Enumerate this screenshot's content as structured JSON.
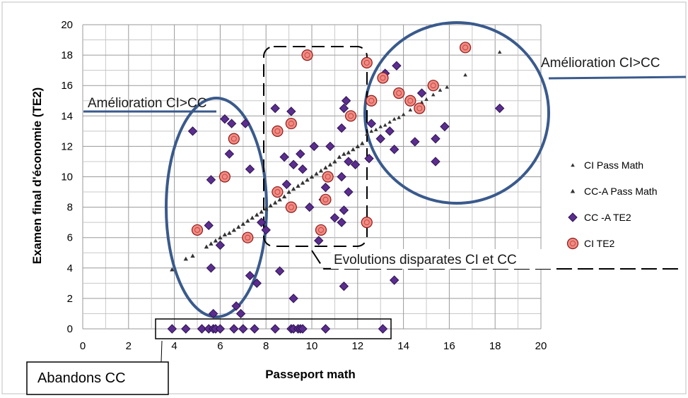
{
  "chart_data": {
    "type": "scatter",
    "xlabel": "Passeport math",
    "ylabel": "Examen final d'économie (TE2)",
    "xlim": [
      0,
      20
    ],
    "ylim": [
      0,
      20
    ],
    "x_ticks": [
      0,
      2,
      4,
      6,
      8,
      10,
      12,
      14,
      16,
      18,
      20
    ],
    "y_ticks": [
      0,
      2,
      4,
      6,
      8,
      10,
      12,
      14,
      16,
      18,
      20
    ],
    "grid": true,
    "legend_position": "right",
    "series": [
      {
        "name": "CI Pass Math",
        "marker": "triangle-small",
        "color": "#333333",
        "points": [
          [
            12.4,
            12.8
          ],
          [
            12.6,
            13.0
          ],
          [
            12.8,
            13.1
          ],
          [
            13.0,
            13.3
          ],
          [
            13.2,
            13.4
          ],
          [
            13.4,
            13.6
          ],
          [
            13.6,
            13.8
          ],
          [
            13.8,
            13.9
          ],
          [
            14.0,
            14.1
          ],
          [
            14.3,
            14.4
          ],
          [
            14.6,
            14.7
          ],
          [
            14.8,
            14.9
          ],
          [
            15.0,
            15.1
          ],
          [
            15.3,
            15.4
          ],
          [
            15.6,
            15.7
          ],
          [
            15.9,
            15.9
          ],
          [
            16.7,
            16.7
          ],
          [
            18.2,
            18.2
          ]
        ]
      },
      {
        "name": "CC-A Pass Math",
        "marker": "triangle",
        "color": "#333333",
        "points": [
          [
            3.9,
            3.9
          ],
          [
            4.5,
            4.6
          ],
          [
            4.8,
            4.8
          ],
          [
            5.4,
            5.4
          ],
          [
            5.6,
            5.6
          ],
          [
            5.8,
            5.8
          ],
          [
            6.0,
            6.0
          ],
          [
            6.2,
            6.2
          ],
          [
            6.4,
            6.3
          ],
          [
            6.6,
            6.5
          ],
          [
            6.8,
            6.7
          ],
          [
            7.0,
            6.9
          ],
          [
            7.2,
            7.1
          ],
          [
            7.4,
            7.3
          ],
          [
            7.6,
            7.5
          ],
          [
            7.8,
            7.7
          ],
          [
            8.0,
            7.9
          ],
          [
            8.2,
            8.1
          ],
          [
            8.4,
            8.3
          ],
          [
            8.6,
            8.5
          ],
          [
            8.8,
            8.7
          ],
          [
            9.0,
            9.0
          ],
          [
            9.2,
            9.2
          ],
          [
            9.4,
            9.4
          ],
          [
            9.6,
            9.6
          ],
          [
            9.8,
            9.8
          ],
          [
            10.0,
            10.0
          ],
          [
            10.2,
            10.2
          ],
          [
            10.4,
            10.4
          ],
          [
            10.6,
            10.6
          ],
          [
            10.8,
            10.8
          ],
          [
            11.0,
            11.0
          ],
          [
            11.2,
            11.3
          ],
          [
            11.4,
            11.5
          ],
          [
            11.6,
            11.6
          ],
          [
            11.8,
            11.8
          ],
          [
            12.0,
            12.0
          ],
          [
            12.2,
            12.2
          ]
        ]
      },
      {
        "name": "CC -A TE2",
        "marker": "diamond",
        "color": "#5b2d8e",
        "points": [
          [
            3.9,
            0
          ],
          [
            4.5,
            0
          ],
          [
            5.2,
            0
          ],
          [
            5.5,
            0
          ],
          [
            5.7,
            0
          ],
          [
            5.8,
            0
          ],
          [
            6.0,
            0
          ],
          [
            6.6,
            0
          ],
          [
            7.0,
            0
          ],
          [
            7.5,
            0
          ],
          [
            8.4,
            0
          ],
          [
            9.1,
            0
          ],
          [
            9.2,
            0
          ],
          [
            9.4,
            0
          ],
          [
            9.5,
            0
          ],
          [
            9.6,
            0
          ],
          [
            10.6,
            0
          ],
          [
            13.1,
            0
          ],
          [
            4.8,
            13.0
          ],
          [
            5.5,
            6.8
          ],
          [
            5.6,
            9.8
          ],
          [
            5.6,
            4.0
          ],
          [
            5.7,
            1.0
          ],
          [
            6.0,
            5.5
          ],
          [
            6.2,
            13.8
          ],
          [
            6.4,
            11.5
          ],
          [
            6.5,
            13.5
          ],
          [
            6.7,
            1.5
          ],
          [
            6.9,
            1.0
          ],
          [
            7.1,
            13.5
          ],
          [
            7.3,
            10.5
          ],
          [
            7.3,
            3.5
          ],
          [
            7.6,
            3.0
          ],
          [
            7.8,
            7.0
          ],
          [
            8.0,
            6.5
          ],
          [
            8.4,
            14.5
          ],
          [
            8.6,
            3.8
          ],
          [
            8.8,
            11.3
          ],
          [
            8.9,
            9.5
          ],
          [
            9.1,
            14.3
          ],
          [
            9.2,
            10.8
          ],
          [
            9.2,
            2.0
          ],
          [
            9.5,
            11.5
          ],
          [
            9.6,
            10.5
          ],
          [
            9.9,
            8.0
          ],
          [
            10.1,
            12.0
          ],
          [
            10.3,
            5.8
          ],
          [
            10.5,
            8.5
          ],
          [
            10.6,
            9.3
          ],
          [
            10.8,
            12.0
          ],
          [
            11.0,
            7.3
          ],
          [
            11.3,
            13.2
          ],
          [
            11.3,
            10.0
          ],
          [
            11.4,
            14.5
          ],
          [
            11.5,
            15.0
          ],
          [
            11.6,
            9.0
          ],
          [
            11.6,
            11.0
          ],
          [
            11.4,
            7.8
          ],
          [
            11.3,
            7.0
          ],
          [
            11.4,
            2.8
          ],
          [
            11.9,
            10.8
          ],
          [
            12.5,
            11.2
          ],
          [
            12.6,
            13.5
          ],
          [
            13.0,
            12.5
          ],
          [
            13.1,
            16.5
          ],
          [
            13.2,
            16.8
          ],
          [
            13.4,
            13.0
          ],
          [
            13.6,
            11.8
          ],
          [
            13.7,
            17.3
          ],
          [
            13.6,
            3.2
          ],
          [
            14.5,
            12.3
          ],
          [
            14.8,
            15.5
          ],
          [
            15.4,
            12.5
          ],
          [
            15.4,
            11.0
          ],
          [
            15.8,
            13.3
          ],
          [
            18.2,
            14.5
          ]
        ]
      },
      {
        "name": "CI TE2",
        "marker": "circle",
        "color": "#f28b82",
        "points": [
          [
            5.0,
            6.5
          ],
          [
            6.2,
            10.0
          ],
          [
            6.6,
            12.5
          ],
          [
            7.2,
            6.0
          ],
          [
            8.5,
            13.0
          ],
          [
            8.5,
            9.0
          ],
          [
            9.1,
            8.0
          ],
          [
            9.1,
            13.5
          ],
          [
            9.8,
            18.0
          ],
          [
            10.4,
            6.5
          ],
          [
            10.6,
            8.5
          ],
          [
            10.7,
            10.0
          ],
          [
            11.7,
            14.0
          ],
          [
            12.4,
            7.0
          ],
          [
            12.4,
            17.5
          ],
          [
            12.6,
            15.0
          ],
          [
            13.1,
            16.5
          ],
          [
            13.8,
            15.5
          ],
          [
            14.3,
            15.0
          ],
          [
            14.7,
            14.5
          ],
          [
            15.3,
            16.0
          ],
          [
            16.7,
            18.5
          ]
        ]
      }
    ],
    "annotations": [
      {
        "text": "Amélioration CI>CC"
      },
      {
        "text": "Amélioration CI>CC"
      },
      {
        "text": "Evolutions disparates CI et CC"
      },
      {
        "text": "Abandons CC"
      }
    ]
  }
}
